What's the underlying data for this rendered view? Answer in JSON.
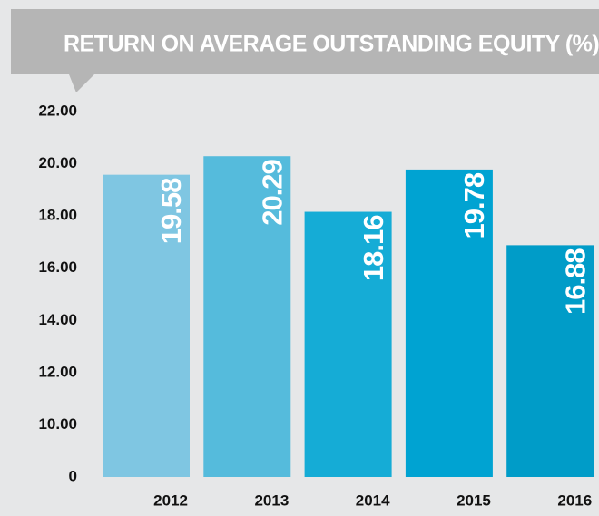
{
  "chart_data": {
    "type": "bar",
    "title": "RETURN ON AVERAGE OUTSTANDING EQUITY (%)",
    "categories": [
      "2012",
      "2013",
      "2014",
      "2015",
      "2016"
    ],
    "values": [
      19.58,
      20.29,
      18.16,
      19.78,
      16.88
    ],
    "colors": [
      "#7fc6e2",
      "#55bbdc",
      "#15acd6",
      "#00a3d2",
      "#009cc8"
    ],
    "ylim": [
      0,
      22
    ],
    "yticks": [
      0,
      {
        "value": 10,
        "label": "10.00"
      },
      {
        "value": 12,
        "label": "12.00"
      },
      {
        "value": 14,
        "label": "14.00"
      },
      {
        "value": 16,
        "label": "16.00"
      },
      {
        "value": 18,
        "label": "18.00"
      },
      {
        "value": 20,
        "label": "20.00"
      },
      {
        "value": 22,
        "label": "22.00"
      }
    ]
  }
}
